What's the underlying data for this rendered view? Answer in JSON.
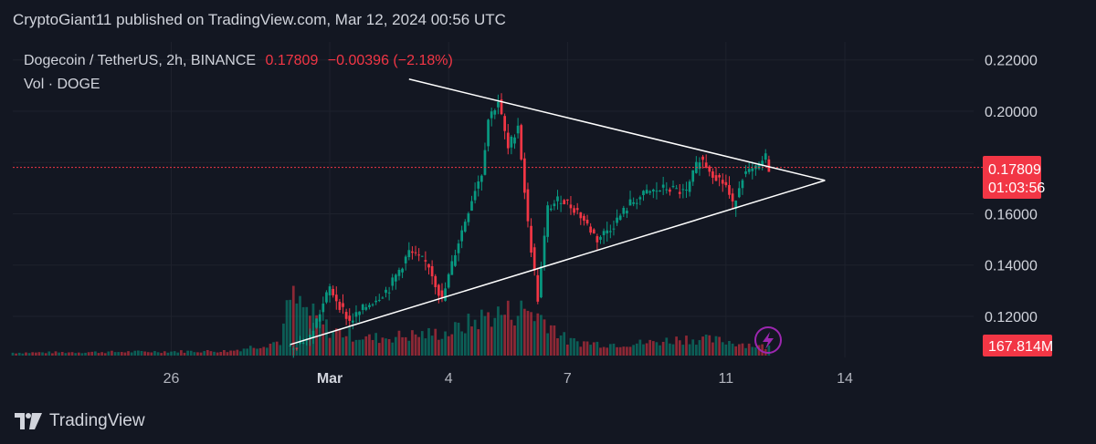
{
  "header": {
    "published": "CryptoGiant11 published on TradingView.com, Mar 12, 2024 00:56 UTC"
  },
  "legend": {
    "symbol": "Dogecoin / TetherUS, 2h, BINANCE",
    "last_price": "0.17809",
    "change": "−0.00396 (−2.18%)",
    "volume_label": "Vol · DOGE"
  },
  "price_axis": {
    "ticks": [
      "0.22000",
      "0.20000",
      "0.16000",
      "0.14000",
      "0.12000"
    ],
    "price_tag": "0.17809",
    "countdown": "01:03:56",
    "volume_tag": "167.814M"
  },
  "time_axis": {
    "ticks": [
      "26",
      "Mar",
      "4",
      "7",
      "11",
      "14"
    ]
  },
  "footer": {
    "brand": "TradingView"
  },
  "colors": {
    "background": "#131722",
    "up": "#089981",
    "down": "#f23645",
    "grid": "#1e222d",
    "trendline": "#ffffff",
    "indicator": "#9c27b0"
  },
  "chart_data": {
    "type": "candlestick",
    "title": "Dogecoin / TetherUS, 2h, BINANCE",
    "y_range": [
      0.104,
      0.227
    ],
    "y_ticks": [
      0.22,
      0.2,
      0.18,
      0.16,
      0.14,
      0.12
    ],
    "current_price": 0.17809,
    "price_path": [
      [
        "2024-02-29T00:00",
        0.108
      ],
      [
        "2024-02-29T12:00",
        0.112
      ],
      [
        "2024-03-01T00:00",
        0.131
      ],
      [
        "2024-03-01T12:00",
        0.118
      ],
      [
        "2024-03-02T00:00",
        0.125
      ],
      [
        "2024-03-02T12:00",
        0.131
      ],
      [
        "2024-03-03T00:00",
        0.145
      ],
      [
        "2024-03-03T12:00",
        0.14
      ],
      [
        "2024-03-03T20:00",
        0.126
      ],
      [
        "2024-03-04T04:00",
        0.145
      ],
      [
        "2024-03-04T16:00",
        0.17
      ],
      [
        "2024-03-04T20:00",
        0.176
      ],
      [
        "2024-03-05T00:00",
        0.197
      ],
      [
        "2024-03-05T06:00",
        0.204
      ],
      [
        "2024-03-05T12:00",
        0.185
      ],
      [
        "2024-03-05T18:00",
        0.195
      ],
      [
        "2024-03-06T00:00",
        0.156
      ],
      [
        "2024-03-06T06:00",
        0.127
      ],
      [
        "2024-03-06T12:00",
        0.162
      ],
      [
        "2024-03-06T20:00",
        0.166
      ],
      [
        "2024-03-07T06:00",
        0.161
      ],
      [
        "2024-03-07T18:00",
        0.15
      ],
      [
        "2024-03-08T04:00",
        0.156
      ],
      [
        "2024-03-08T14:00",
        0.164
      ],
      [
        "2024-03-09T00:00",
        0.168
      ],
      [
        "2024-03-09T12:00",
        0.17
      ],
      [
        "2024-03-10T00:00",
        0.168
      ],
      [
        "2024-03-10T08:00",
        0.182
      ],
      [
        "2024-03-10T16:00",
        0.176
      ],
      [
        "2024-03-11T00:00",
        0.171
      ],
      [
        "2024-03-11T04:00",
        0.163
      ],
      [
        "2024-03-11T10:00",
        0.175
      ],
      [
        "2024-03-11T18:00",
        0.177
      ],
      [
        "2024-03-12T00:00",
        0.182
      ],
      [
        "2024-03-12T02:00",
        0.178
      ]
    ],
    "volume_levels": [
      [
        "2024-02-22T00:00",
        0.05
      ],
      [
        "2024-02-27T12:00",
        0.08
      ],
      [
        "2024-02-28T18:00",
        0.25
      ],
      [
        "2024-02-29T00:00",
        1.0
      ],
      [
        "2024-03-01T00:00",
        0.45
      ],
      [
        "2024-03-02T00:00",
        0.3
      ],
      [
        "2024-03-03T00:00",
        0.35
      ],
      [
        "2024-03-04T00:00",
        0.4
      ],
      [
        "2024-03-05T00:00",
        0.7
      ],
      [
        "2024-03-06T00:00",
        0.8
      ],
      [
        "2024-03-06T12:00",
        0.6
      ],
      [
        "2024-03-07T00:00",
        0.25
      ],
      [
        "2024-03-08T00:00",
        0.2
      ],
      [
        "2024-03-09T00:00",
        0.22
      ],
      [
        "2024-03-10T00:00",
        0.3
      ],
      [
        "2024-03-11T00:00",
        0.25
      ],
      [
        "2024-03-12T00:00",
        0.15
      ]
    ],
    "trendlines": [
      {
        "name": "upper",
        "from": [
          "2024-03-03T00:00",
          0.2125
        ],
        "to": [
          "2024-03-13T12:00",
          0.173
        ]
      },
      {
        "name": "lower",
        "from": [
          "2024-02-29T00:00",
          0.109
        ],
        "to": [
          "2024-03-13T12:00",
          0.173
        ]
      }
    ]
  }
}
